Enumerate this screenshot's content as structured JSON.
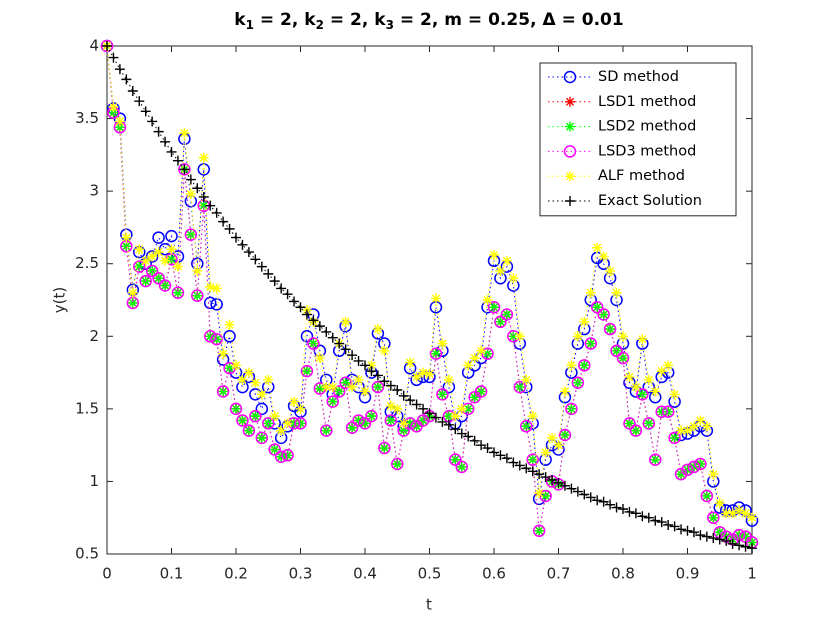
{
  "chart_data": {
    "type": "line",
    "title": "k1 = 2, k2 = 2, k3 = 2, m = 0.25, Δ = 0.01",
    "x_label": "t",
    "y_label": "y(t)",
    "x": [
      0,
      0.01,
      0.02,
      0.03,
      0.04,
      0.05,
      0.06,
      0.07,
      0.08,
      0.09,
      0.1,
      0.11,
      0.12,
      0.13,
      0.14,
      0.15,
      0.16,
      0.17,
      0.18,
      0.19,
      0.2,
      0.21,
      0.22,
      0.23,
      0.24,
      0.25,
      0.26,
      0.27,
      0.28,
      0.29,
      0.3,
      0.31,
      0.32,
      0.33,
      0.34,
      0.35,
      0.36,
      0.37,
      0.38,
      0.39,
      0.4,
      0.41,
      0.42,
      0.43,
      0.44,
      0.45,
      0.46,
      0.47,
      0.48,
      0.49,
      0.5,
      0.51,
      0.52,
      0.53,
      0.54,
      0.55,
      0.56,
      0.57,
      0.58,
      0.59,
      0.6,
      0.61,
      0.62,
      0.63,
      0.64,
      0.65,
      0.66,
      0.67,
      0.68,
      0.69,
      0.7,
      0.71,
      0.72,
      0.73,
      0.74,
      0.75,
      0.76,
      0.77,
      0.78,
      0.79,
      0.8,
      0.81,
      0.82,
      0.83,
      0.84,
      0.85,
      0.86,
      0.87,
      0.88,
      0.89,
      0.9,
      0.91,
      0.92,
      0.93,
      0.94,
      0.95,
      0.96,
      0.97,
      0.98,
      0.99,
      1
    ],
    "series": [
      {
        "name": "SD method",
        "color": "#0000ff",
        "marker": "circle",
        "values": [
          4,
          3.57,
          3.5,
          2.7,
          2.32,
          2.58,
          2.5,
          2.55,
          2.68,
          2.6,
          2.69,
          2.55,
          3.36,
          2.93,
          2.5,
          3.15,
          2.23,
          2.22,
          1.84,
          2,
          1.75,
          1.65,
          1.72,
          1.6,
          1.5,
          1.65,
          1.4,
          1.3,
          1.38,
          1.52,
          1.48,
          2,
          2.15,
          1.9,
          1.7,
          1.6,
          1.9,
          2.07,
          1.7,
          1.65,
          1.58,
          1.75,
          2.02,
          1.95,
          1.48,
          1.45,
          1.38,
          1.78,
          1.7,
          1.72,
          1.72,
          2.2,
          1.9,
          1.65,
          1.4,
          1.45,
          1.75,
          1.8,
          1.85,
          2.2,
          2.52,
          2.4,
          2.48,
          2.35,
          1.95,
          1.65,
          1.4,
          0.88,
          1.15,
          1.25,
          1.22,
          1.58,
          1.75,
          1.95,
          2.05,
          2.25,
          2.54,
          2.5,
          2.4,
          2.25,
          1.95,
          1.68,
          1.62,
          1.95,
          1.65,
          1.58,
          1.72,
          1.75,
          1.55,
          1.32,
          1.33,
          1.35,
          1.38,
          1.35,
          1,
          0.82,
          0.8,
          0.8,
          0.82,
          0.8,
          0.73
        ]
      },
      {
        "name": "LSD1 method",
        "color": "#ff0000",
        "marker": "asterisk",
        "values": [
          4,
          3.54,
          3.44,
          2.62,
          2.23,
          2.48,
          2.38,
          2.45,
          2.4,
          2.35,
          2.53,
          2.3,
          3.15,
          2.7,
          2.28,
          2.9,
          2,
          1.98,
          1.62,
          1.78,
          1.5,
          1.42,
          1.35,
          1.45,
          1.3,
          1.4,
          1.22,
          1.17,
          1.18,
          1.4,
          1.4,
          1.76,
          1.95,
          1.64,
          1.35,
          1.55,
          1.62,
          1.68,
          1.37,
          1.42,
          1.4,
          1.45,
          1.65,
          1.23,
          1.42,
          1.12,
          1.35,
          1.4,
          1.38,
          1.42,
          1.45,
          1.88,
          1.6,
          1.45,
          1.15,
          1.1,
          1.5,
          1.58,
          1.62,
          1.88,
          2.2,
          2.1,
          2.15,
          2,
          1.65,
          1.38,
          1.15,
          0.66,
          0.9,
          1,
          0.98,
          1.32,
          1.5,
          1.68,
          1.8,
          1.95,
          2.2,
          2.15,
          2.05,
          1.9,
          1.85,
          1.4,
          1.35,
          1.6,
          1.4,
          1.15,
          1.48,
          1.48,
          1.3,
          1.05,
          1.08,
          1.1,
          1.12,
          0.9,
          0.75,
          0.65,
          0.62,
          0.6,
          0.63,
          0.62,
          0.58
        ]
      },
      {
        "name": "LSD2 method",
        "color": "#00ff00",
        "marker": "asterisk",
        "values": [
          4,
          3.54,
          3.44,
          2.62,
          2.23,
          2.48,
          2.38,
          2.45,
          2.4,
          2.35,
          2.53,
          2.3,
          3.15,
          2.7,
          2.28,
          2.9,
          2,
          1.98,
          1.62,
          1.78,
          1.5,
          1.42,
          1.35,
          1.45,
          1.3,
          1.4,
          1.22,
          1.17,
          1.18,
          1.4,
          1.4,
          1.76,
          1.95,
          1.64,
          1.35,
          1.55,
          1.62,
          1.68,
          1.37,
          1.42,
          1.4,
          1.45,
          1.65,
          1.23,
          1.42,
          1.12,
          1.35,
          1.4,
          1.38,
          1.42,
          1.45,
          1.88,
          1.6,
          1.45,
          1.15,
          1.1,
          1.5,
          1.58,
          1.62,
          1.88,
          2.2,
          2.1,
          2.15,
          2,
          1.65,
          1.38,
          1.15,
          0.66,
          0.9,
          1,
          0.98,
          1.32,
          1.5,
          1.68,
          1.8,
          1.95,
          2.2,
          2.15,
          2.05,
          1.9,
          1.85,
          1.4,
          1.35,
          1.6,
          1.4,
          1.15,
          1.48,
          1.48,
          1.3,
          1.05,
          1.08,
          1.1,
          1.12,
          0.9,
          0.75,
          0.65,
          0.62,
          0.6,
          0.63,
          0.62,
          0.58
        ]
      },
      {
        "name": "LSD3 method",
        "color": "#ff00ff",
        "marker": "circle",
        "values": [
          4,
          3.54,
          3.44,
          2.62,
          2.23,
          2.48,
          2.38,
          2.45,
          2.4,
          2.35,
          2.53,
          2.3,
          3.15,
          2.7,
          2.28,
          2.9,
          2,
          1.98,
          1.62,
          1.78,
          1.5,
          1.42,
          1.35,
          1.45,
          1.3,
          1.4,
          1.22,
          1.17,
          1.18,
          1.4,
          1.4,
          1.76,
          1.95,
          1.64,
          1.35,
          1.55,
          1.62,
          1.68,
          1.37,
          1.42,
          1.4,
          1.45,
          1.65,
          1.23,
          1.42,
          1.12,
          1.35,
          1.4,
          1.38,
          1.42,
          1.45,
          1.88,
          1.6,
          1.45,
          1.15,
          1.1,
          1.5,
          1.58,
          1.62,
          1.88,
          2.2,
          2.1,
          2.15,
          2,
          1.65,
          1.38,
          1.15,
          0.66,
          0.9,
          1,
          0.98,
          1.32,
          1.5,
          1.68,
          1.8,
          1.95,
          2.2,
          2.15,
          2.05,
          1.9,
          1.85,
          1.4,
          1.35,
          1.6,
          1.4,
          1.15,
          1.48,
          1.48,
          1.3,
          1.05,
          1.08,
          1.1,
          1.12,
          0.9,
          0.75,
          0.65,
          0.62,
          0.6,
          0.63,
          0.62,
          0.58
        ]
      },
      {
        "name": "ALF method",
        "color": "#ffff00",
        "marker": "asterisk",
        "values": [
          4,
          3.58,
          3.48,
          2.68,
          2.3,
          2.6,
          2.52,
          2.55,
          2.58,
          2.52,
          2.6,
          2.48,
          3.4,
          2.98,
          2.45,
          3.23,
          2.34,
          2.33,
          1.88,
          2.08,
          1.8,
          1.7,
          1.75,
          1.68,
          1.6,
          1.7,
          1.45,
          1.35,
          1.4,
          1.55,
          1.5,
          2.18,
          2.1,
          1.85,
          1.65,
          1.65,
          1.95,
          2.1,
          1.65,
          1.7,
          1.62,
          1.8,
          2.05,
          1.9,
          1.52,
          1.5,
          1.4,
          1.82,
          1.72,
          1.75,
          1.74,
          2.26,
          1.95,
          1.7,
          1.45,
          1.5,
          1.8,
          1.85,
          1.9,
          2.25,
          2.56,
          2.45,
          2.52,
          2.4,
          2,
          1.7,
          1.45,
          0.92,
          1.2,
          1.3,
          1.25,
          1.62,
          1.8,
          2,
          2.1,
          2.3,
          2.61,
          2.55,
          2.45,
          2.3,
          2,
          1.72,
          1.65,
          1.98,
          1.7,
          1.62,
          1.76,
          1.8,
          1.6,
          1.35,
          1.35,
          1.38,
          1.42,
          1.38,
          1.05,
          0.85,
          0.78,
          0.78,
          0.8,
          0.78,
          0.75
        ]
      },
      {
        "name": "Exact Solution",
        "color": "#000000",
        "marker": "plus",
        "values": [
          4,
          3.92,
          3.84,
          3.77,
          3.69,
          3.62,
          3.55,
          3.48,
          3.41,
          3.34,
          3.27,
          3.21,
          3.15,
          3.08,
          3.02,
          2.96,
          2.9,
          2.85,
          2.79,
          2.74,
          2.68,
          2.63,
          2.58,
          2.53,
          2.48,
          2.43,
          2.38,
          2.33,
          2.29,
          2.24,
          2.2,
          2.15,
          2.11,
          2.07,
          2.03,
          1.99,
          1.95,
          1.91,
          1.87,
          1.83,
          1.8,
          1.76,
          1.73,
          1.69,
          1.66,
          1.63,
          1.59,
          1.56,
          1.53,
          1.5,
          1.47,
          1.44,
          1.41,
          1.39,
          1.36,
          1.33,
          1.31,
          1.28,
          1.25,
          1.23,
          1.2,
          1.18,
          1.16,
          1.13,
          1.11,
          1.09,
          1.07,
          1.05,
          1.03,
          1.01,
          0.99,
          0.97,
          0.95,
          0.93,
          0.91,
          0.89,
          0.87,
          0.86,
          0.84,
          0.82,
          0.81,
          0.79,
          0.78,
          0.76,
          0.75,
          0.73,
          0.72,
          0.7,
          0.69,
          0.67,
          0.66,
          0.65,
          0.63,
          0.62,
          0.61,
          0.6,
          0.59,
          0.57,
          0.56,
          0.55,
          0.54
        ]
      }
    ],
    "xlim": [
      0,
      1
    ],
    "xticks": [
      0,
      0.1,
      0.2,
      0.3,
      0.4,
      0.5,
      0.6,
      0.7,
      0.8,
      0.9,
      1
    ],
    "ylim": [
      0.5,
      4
    ],
    "yticks": [
      0.5,
      1,
      1.5,
      2,
      2.5,
      3,
      3.5,
      4
    ],
    "legend": "northeast",
    "line_style": "dotted"
  }
}
